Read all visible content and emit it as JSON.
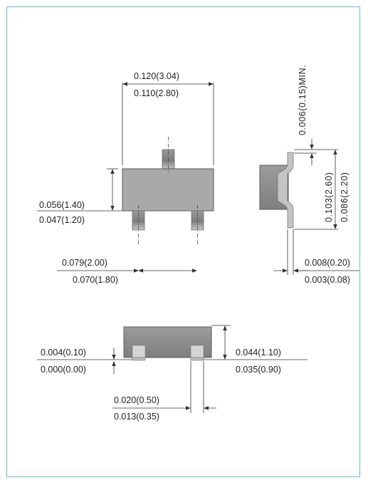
{
  "colors": {
    "border": "#7ac3d8",
    "body_fill": "#a9a9a9",
    "body_outline": "#5a5a5a",
    "lead_fill": "#8f8f8f",
    "side_fill": "#9b9b9b",
    "dimension_line": "#333333"
  },
  "top_view": {
    "width_max": "0.120(3.04)",
    "width_min": "0.110(2.80)",
    "height_max": "0.056(1.40)",
    "height_min": "0.047(1.20)",
    "pitch_max": "0.079(2.00)",
    "pitch_min": "0.070(1.80)"
  },
  "side_view": {
    "lead_thickness": "0.006(0.15)MIN.",
    "overall_max": "0.103(2.60)",
    "overall_min": "0.086(2.20)",
    "lead_width_max": "0.008(0.20)",
    "lead_width_min": "0.003(0.08)"
  },
  "front_view": {
    "standoff_max": "0.004(0.10)",
    "standoff_min": "0.000(0.00)",
    "body_height_max": "0.044(1.10)",
    "body_height_min": "0.035(0.90)",
    "lead_width_max": "0.020(0.50)",
    "lead_width_min": "0.013(0.35)"
  }
}
